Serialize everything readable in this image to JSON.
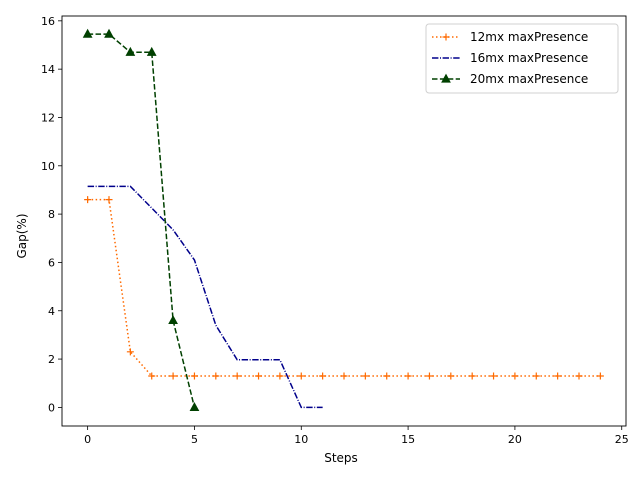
{
  "chart_data": {
    "type": "line",
    "title": "",
    "xlabel": "Steps",
    "ylabel": "Gap(%)",
    "xlim": [
      -1.2,
      25.2
    ],
    "ylim": [
      -0.77,
      16.2
    ],
    "xticks": [
      0,
      5,
      10,
      15,
      20,
      25
    ],
    "yticks": [
      0,
      2,
      4,
      6,
      8,
      10,
      12,
      14,
      16
    ],
    "grid": false,
    "legend_position": "top-right",
    "series": [
      {
        "name": "12mx maxPresence",
        "color": "#ff6a00",
        "linestyle": "dotted",
        "marker": "plus",
        "x": [
          0,
          1,
          2,
          3,
          4,
          5,
          6,
          7,
          8,
          9,
          10,
          11,
          12,
          13,
          14,
          15,
          16,
          17,
          18,
          19,
          20,
          21,
          22,
          23,
          24
        ],
        "y": [
          8.6,
          8.6,
          2.3,
          1.3,
          1.3,
          1.3,
          1.3,
          1.3,
          1.3,
          1.3,
          1.3,
          1.3,
          1.3,
          1.3,
          1.3,
          1.3,
          1.3,
          1.3,
          1.3,
          1.3,
          1.3,
          1.3,
          1.3,
          1.3,
          1.3
        ],
        "markers": true
      },
      {
        "name": "16mx maxPresence",
        "color": "#00008b",
        "linestyle": "dashdot",
        "marker": "none",
        "x": [
          0,
          1,
          2,
          3,
          4,
          5,
          6,
          7,
          8,
          9,
          10,
          11
        ],
        "y": [
          9.15,
          9.15,
          9.15,
          8.25,
          7.35,
          6.1,
          3.4,
          1.97,
          1.97,
          1.97,
          0.0,
          0.0
        ],
        "markers": false
      },
      {
        "name": "20mx maxPresence",
        "color": "#004000",
        "linestyle": "dashed",
        "marker": "triangle",
        "x": [
          0,
          1,
          2,
          3,
          4,
          5
        ],
        "y": [
          15.45,
          15.45,
          14.7,
          14.7,
          3.6,
          0.0
        ],
        "markers": true
      }
    ]
  }
}
